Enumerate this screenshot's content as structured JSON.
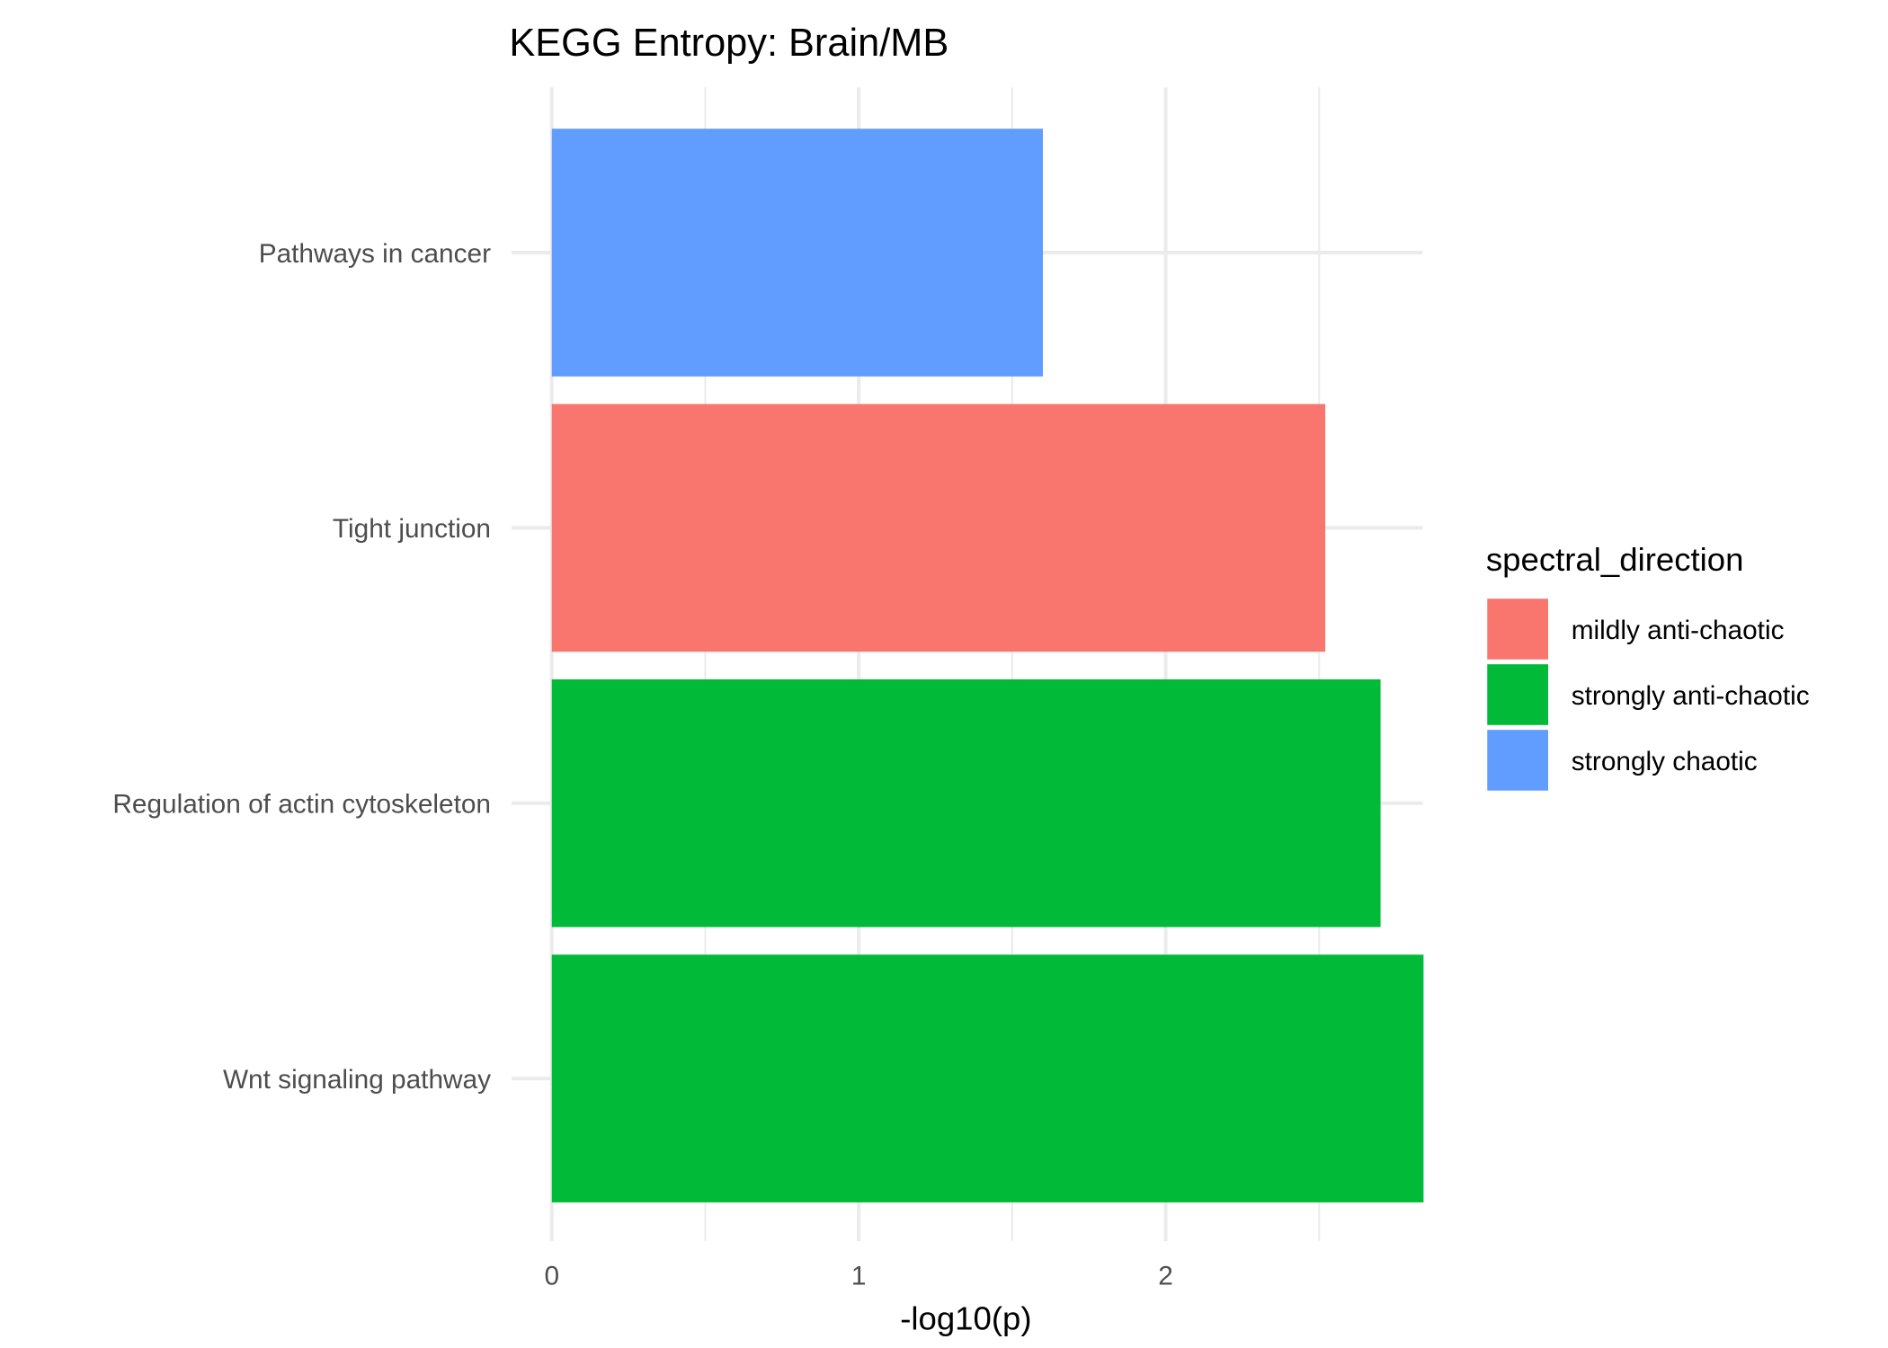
{
  "chart_data": {
    "type": "bar",
    "orientation": "horizontal",
    "title": "KEGG Entropy: Brain/MB",
    "xlabel": "-log10(p)",
    "ylabel": "",
    "xlim": [
      0,
      2.837
    ],
    "xticks": [
      0,
      1,
      2
    ],
    "xtick_labels": [
      "0",
      "1",
      "2"
    ],
    "grid": true,
    "categories": [
      "Pathways in cancer",
      "Tight junction",
      "Regulation of actin cytoskeleton",
      "Wnt signaling pathway"
    ],
    "values": [
      1.6,
      2.52,
      2.7,
      2.84
    ],
    "groups": [
      "strongly chaotic",
      "mildly anti-chaotic",
      "strongly anti-chaotic",
      "strongly anti-chaotic"
    ],
    "legend": {
      "title": "spectral_direction",
      "placement": "right",
      "entries": [
        {
          "label": "mildly anti-chaotic",
          "color": "#F8766D"
        },
        {
          "label": "strongly anti-chaotic",
          "color": "#00BA38"
        },
        {
          "label": "strongly chaotic",
          "color": "#619CFF"
        }
      ]
    }
  }
}
